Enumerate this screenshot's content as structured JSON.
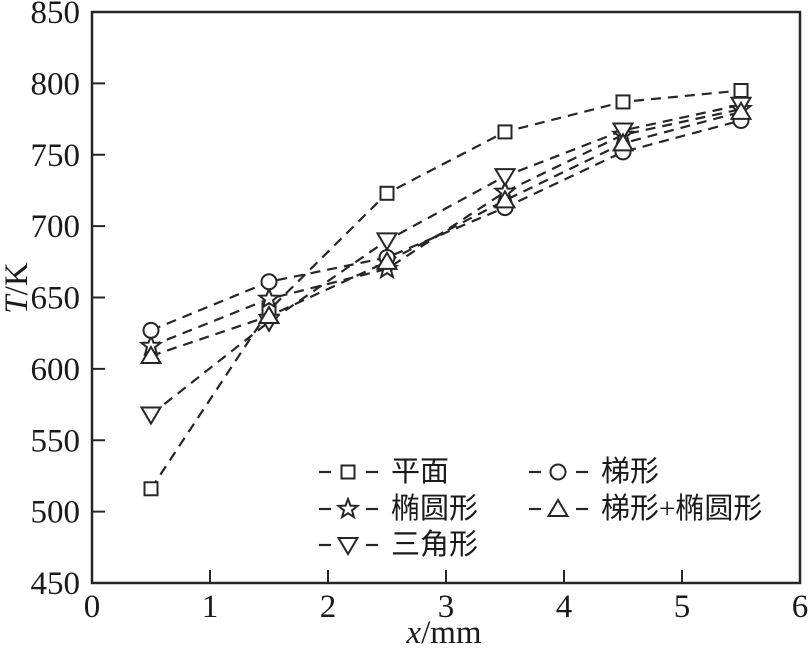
{
  "page": {
    "background": "#ffffff",
    "ink_color": "#262626",
    "text_color": "#1a1a1a"
  },
  "chart_data": {
    "type": "line",
    "title": "",
    "xlabel": "x/mm",
    "ylabel": "T/K",
    "xlabel_var": "x",
    "xlabel_unit": "/mm",
    "ylabel_var": "T",
    "ylabel_unit": "/K",
    "xlim": [
      0,
      6
    ],
    "ylim": [
      450,
      850
    ],
    "xticks": [
      0,
      1,
      2,
      3,
      4,
      5,
      6
    ],
    "yticks": [
      450,
      500,
      550,
      600,
      650,
      700,
      750,
      800,
      850
    ],
    "grid": false,
    "line_style": "dashed",
    "line_color": "#262626",
    "marker_fill": "#ffffff",
    "legend_position": "inside-bottom-center",
    "x": [
      0.5,
      1.5,
      2.5,
      3.5,
      4.5,
      5.5
    ],
    "series": [
      {
        "name": "平面",
        "marker": "square",
        "values": [
          516,
          641,
          723,
          766,
          787,
          795
        ]
      },
      {
        "name": "椭圆形",
        "marker": "star",
        "values": [
          616,
          649,
          670,
          724,
          764,
          782
        ]
      },
      {
        "name": "三角形",
        "marker": "triangle-down",
        "values": [
          568,
          633,
          690,
          735,
          767,
          785
        ]
      },
      {
        "name": "梯形",
        "marker": "circle",
        "values": [
          627,
          661,
          678,
          713,
          752,
          774
        ]
      },
      {
        "name": "梯形+椭圆形",
        "marker": "triangle-up",
        "values": [
          609,
          637,
          675,
          718,
          758,
          780
        ]
      }
    ]
  }
}
